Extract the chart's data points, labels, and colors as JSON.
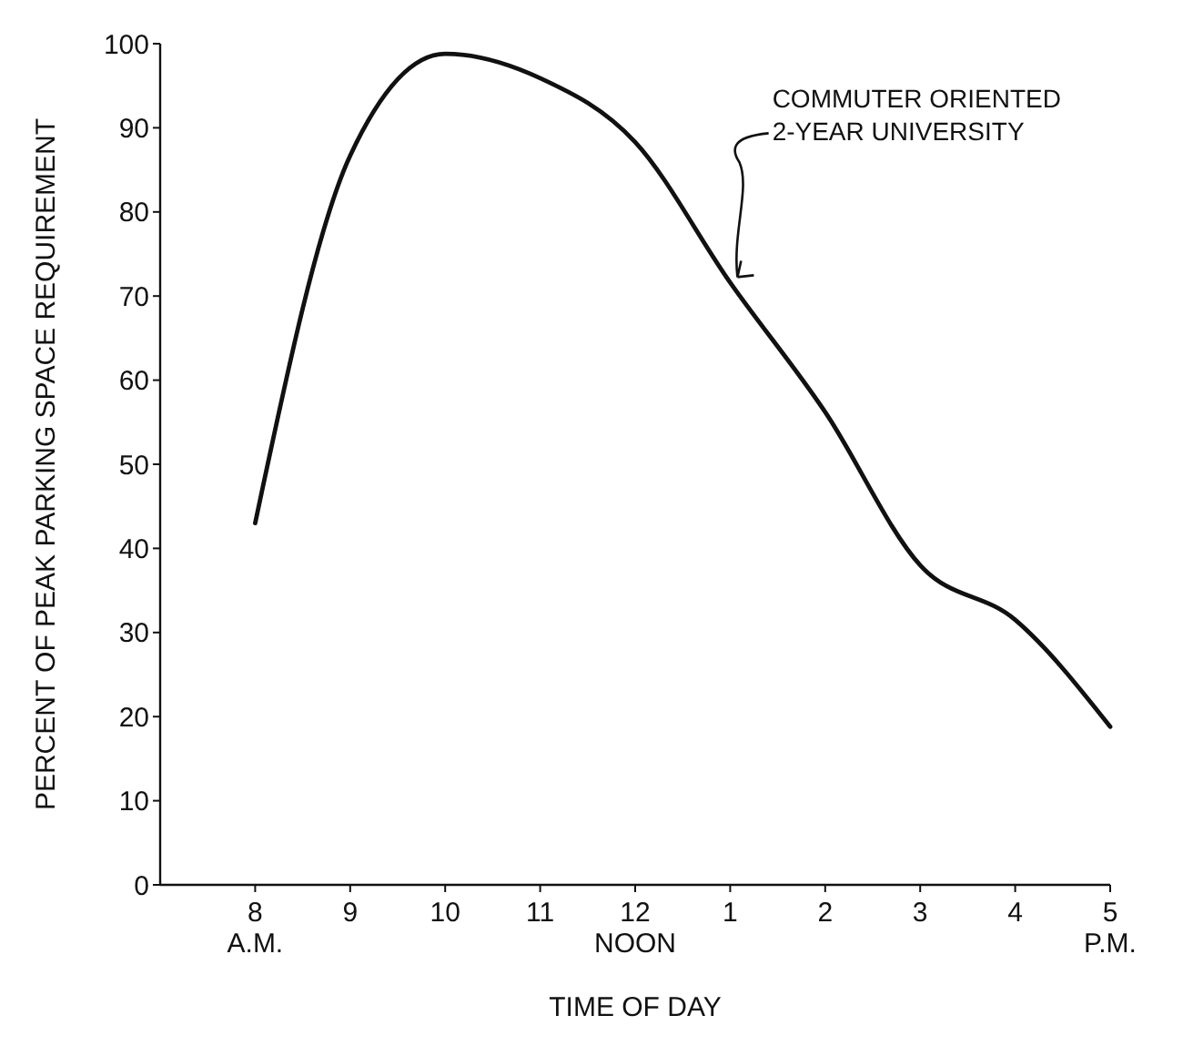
{
  "chart_data": {
    "type": "line",
    "xlabel": "TIME OF DAY",
    "ylabel": "PERCENT OF PEAK PARKING SPACE REQUIREMENT",
    "categories": [
      "8\nA.M.",
      "9",
      "10",
      "11",
      "12\nNOON",
      "1",
      "2",
      "3",
      "4",
      "5\nP.M."
    ],
    "ylim": [
      0,
      100
    ],
    "yticks": [
      0,
      10,
      20,
      30,
      40,
      50,
      60,
      70,
      80,
      90,
      100
    ],
    "grid": false,
    "marker": "none",
    "line_style": "solid",
    "series": [
      {
        "color": "#111111",
        "values": [
          43,
          86.7,
          98.8,
          95.9,
          88.3,
          71.6,
          56.2,
          38,
          31.5,
          18.8
        ]
      }
    ],
    "annotations": [
      {
        "text": "COMMUTER ORIENTED\n2-YEAR UNIVERSITY",
        "x": "1",
        "y": 71.6
      }
    ]
  }
}
